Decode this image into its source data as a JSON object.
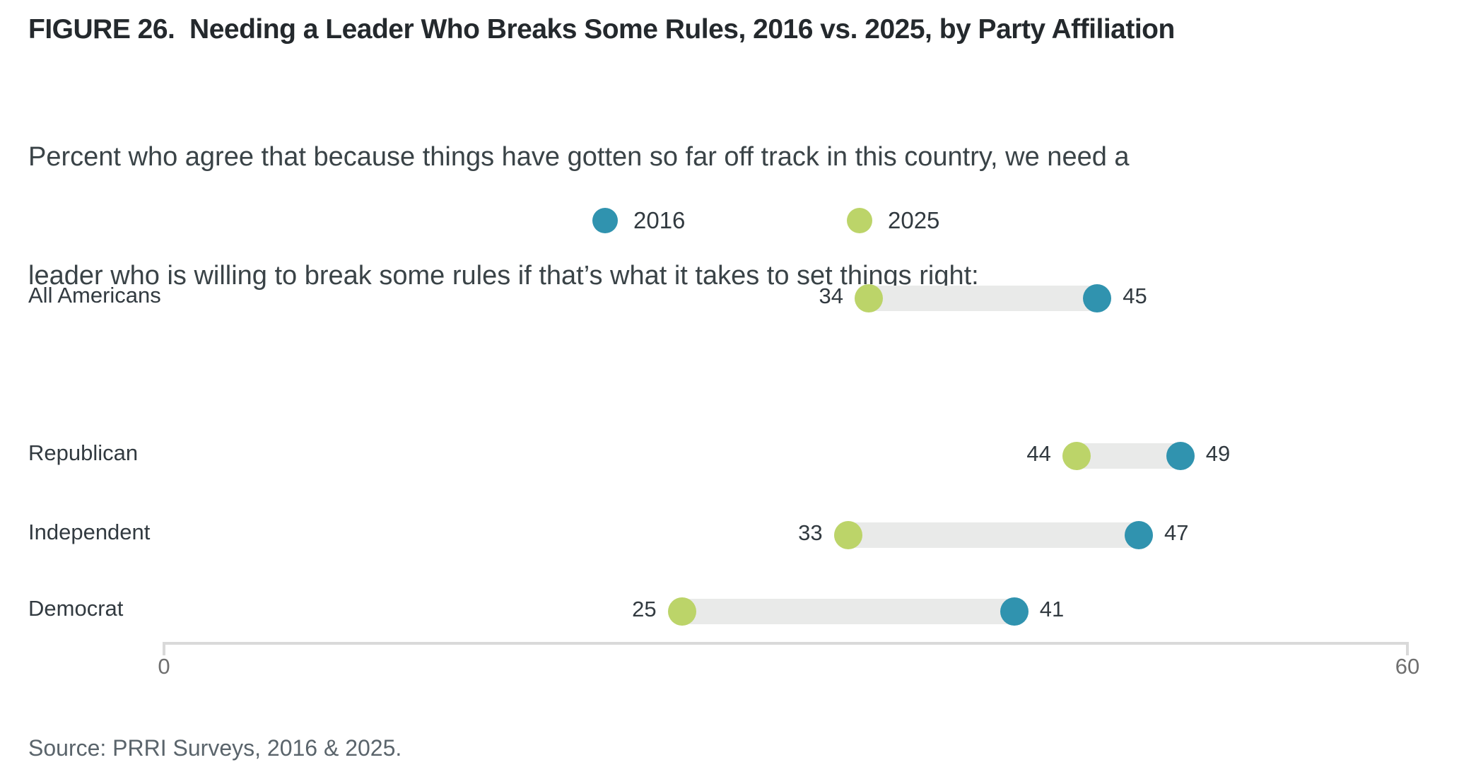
{
  "title": "FIGURE 26.  Needing a Leader Who Breaks Some Rules, 2016 vs. 2025, by Party Affiliation",
  "subtitle_line1": "Percent who agree that because things have gotten so far off track in this country, we need a",
  "subtitle_line2": "leader who is willing to break some rules if that’s what it takes to set things right:",
  "source": "Source: PRRI Surveys, 2016 & 2025.",
  "colors": {
    "series_2016": "#3093AF",
    "series_2025": "#BCD469",
    "track": "#E9EAE9",
    "axis": "#D9D9D9",
    "text_dark": "#323A40",
    "tick_gray": "#6F6F6F",
    "source_gray": "#5A646B"
  },
  "legend": {
    "items": [
      {
        "label": "2016",
        "series": "series_2016"
      },
      {
        "label": "2025",
        "series": "series_2025"
      }
    ]
  },
  "axis": {
    "min_label": "0",
    "max_label": "60"
  },
  "chart_data": {
    "type": "dumbbell",
    "title": "Needing a Leader Who Breaks Some Rules, 2016 vs. 2025, by Party Affiliation",
    "categories": [
      "All Americans",
      "Republican",
      "Independent",
      "Democrat"
    ],
    "series": [
      {
        "name": "2016",
        "values": [
          45,
          49,
          47,
          41
        ],
        "color": "#3093AF"
      },
      {
        "name": "2025",
        "values": [
          34,
          44,
          33,
          25
        ],
        "color": "#BCD469"
      }
    ],
    "xlim": [
      0,
      60
    ],
    "axis_ticks": [
      0,
      60
    ],
    "grid": false,
    "legend_position": "top-center",
    "value_labels": "outside-both-ends"
  }
}
